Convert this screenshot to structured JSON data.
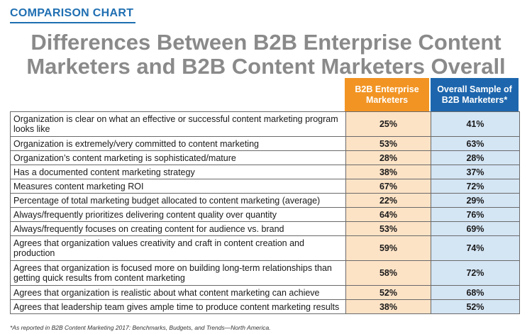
{
  "header": {
    "kicker": "COMPARISON CHART",
    "title_line1": "Differences Between B2B Enterprise Content",
    "title_line2": "Marketers and B2B Content Marketers Overall"
  },
  "colors": {
    "kicker": "#1f6fb2",
    "title": "#8a8a8a",
    "enterprise_header": "#f29423",
    "enterprise_cells": "#fde3c6",
    "overall_header": "#1d66ad",
    "overall_cells": "#d4e5f4"
  },
  "chart_data": {
    "type": "table",
    "columns": [
      "B2B Enterprise Marketers",
      "Overall Sample of B2B Marketers*"
    ],
    "rows": [
      {
        "label": "Organization is clear on what an effective or successful content marketing program looks like",
        "enterprise": "25%",
        "overall": "41%"
      },
      {
        "label": "Organization is extremely/very committed to content marketing",
        "enterprise": "53%",
        "overall": "63%"
      },
      {
        "label": "Organization’s content marketing is sophisticated/mature",
        "enterprise": "28%",
        "overall": "28%"
      },
      {
        "label": "Has a documented content marketing strategy",
        "enterprise": "38%",
        "overall": "37%"
      },
      {
        "label": "Measures content marketing ROI",
        "enterprise": "67%",
        "overall": "72%"
      },
      {
        "label": "Percentage of total marketing budget allocated to content marketing (average)",
        "enterprise": "22%",
        "overall": "29%"
      },
      {
        "label": "Always/frequently prioritizes delivering content quality over quantity",
        "enterprise": "64%",
        "overall": "76%"
      },
      {
        "label": "Always/frequently focuses on creating content for audience vs. brand",
        "enterprise": "53%",
        "overall": "69%"
      },
      {
        "label": "Agrees that organization values creativity and craft in content creation and production",
        "enterprise": "59%",
        "overall": "74%"
      },
      {
        "label": "Agrees that organization is focused more on building long-term relationships than getting quick results from content marketing",
        "enterprise": "58%",
        "overall": "72%"
      },
      {
        "label": "Agrees that organization is realistic about what content marketing can achieve",
        "enterprise": "52%",
        "overall": "68%"
      },
      {
        "label": "Agrees that leadership team gives ample time to produce content marketing results",
        "enterprise": "38%",
        "overall": "52%"
      }
    ],
    "footnote": "*As reported in B2B Content Marketing 2017: Benchmarks, Budgets, and Trends—North America."
  }
}
